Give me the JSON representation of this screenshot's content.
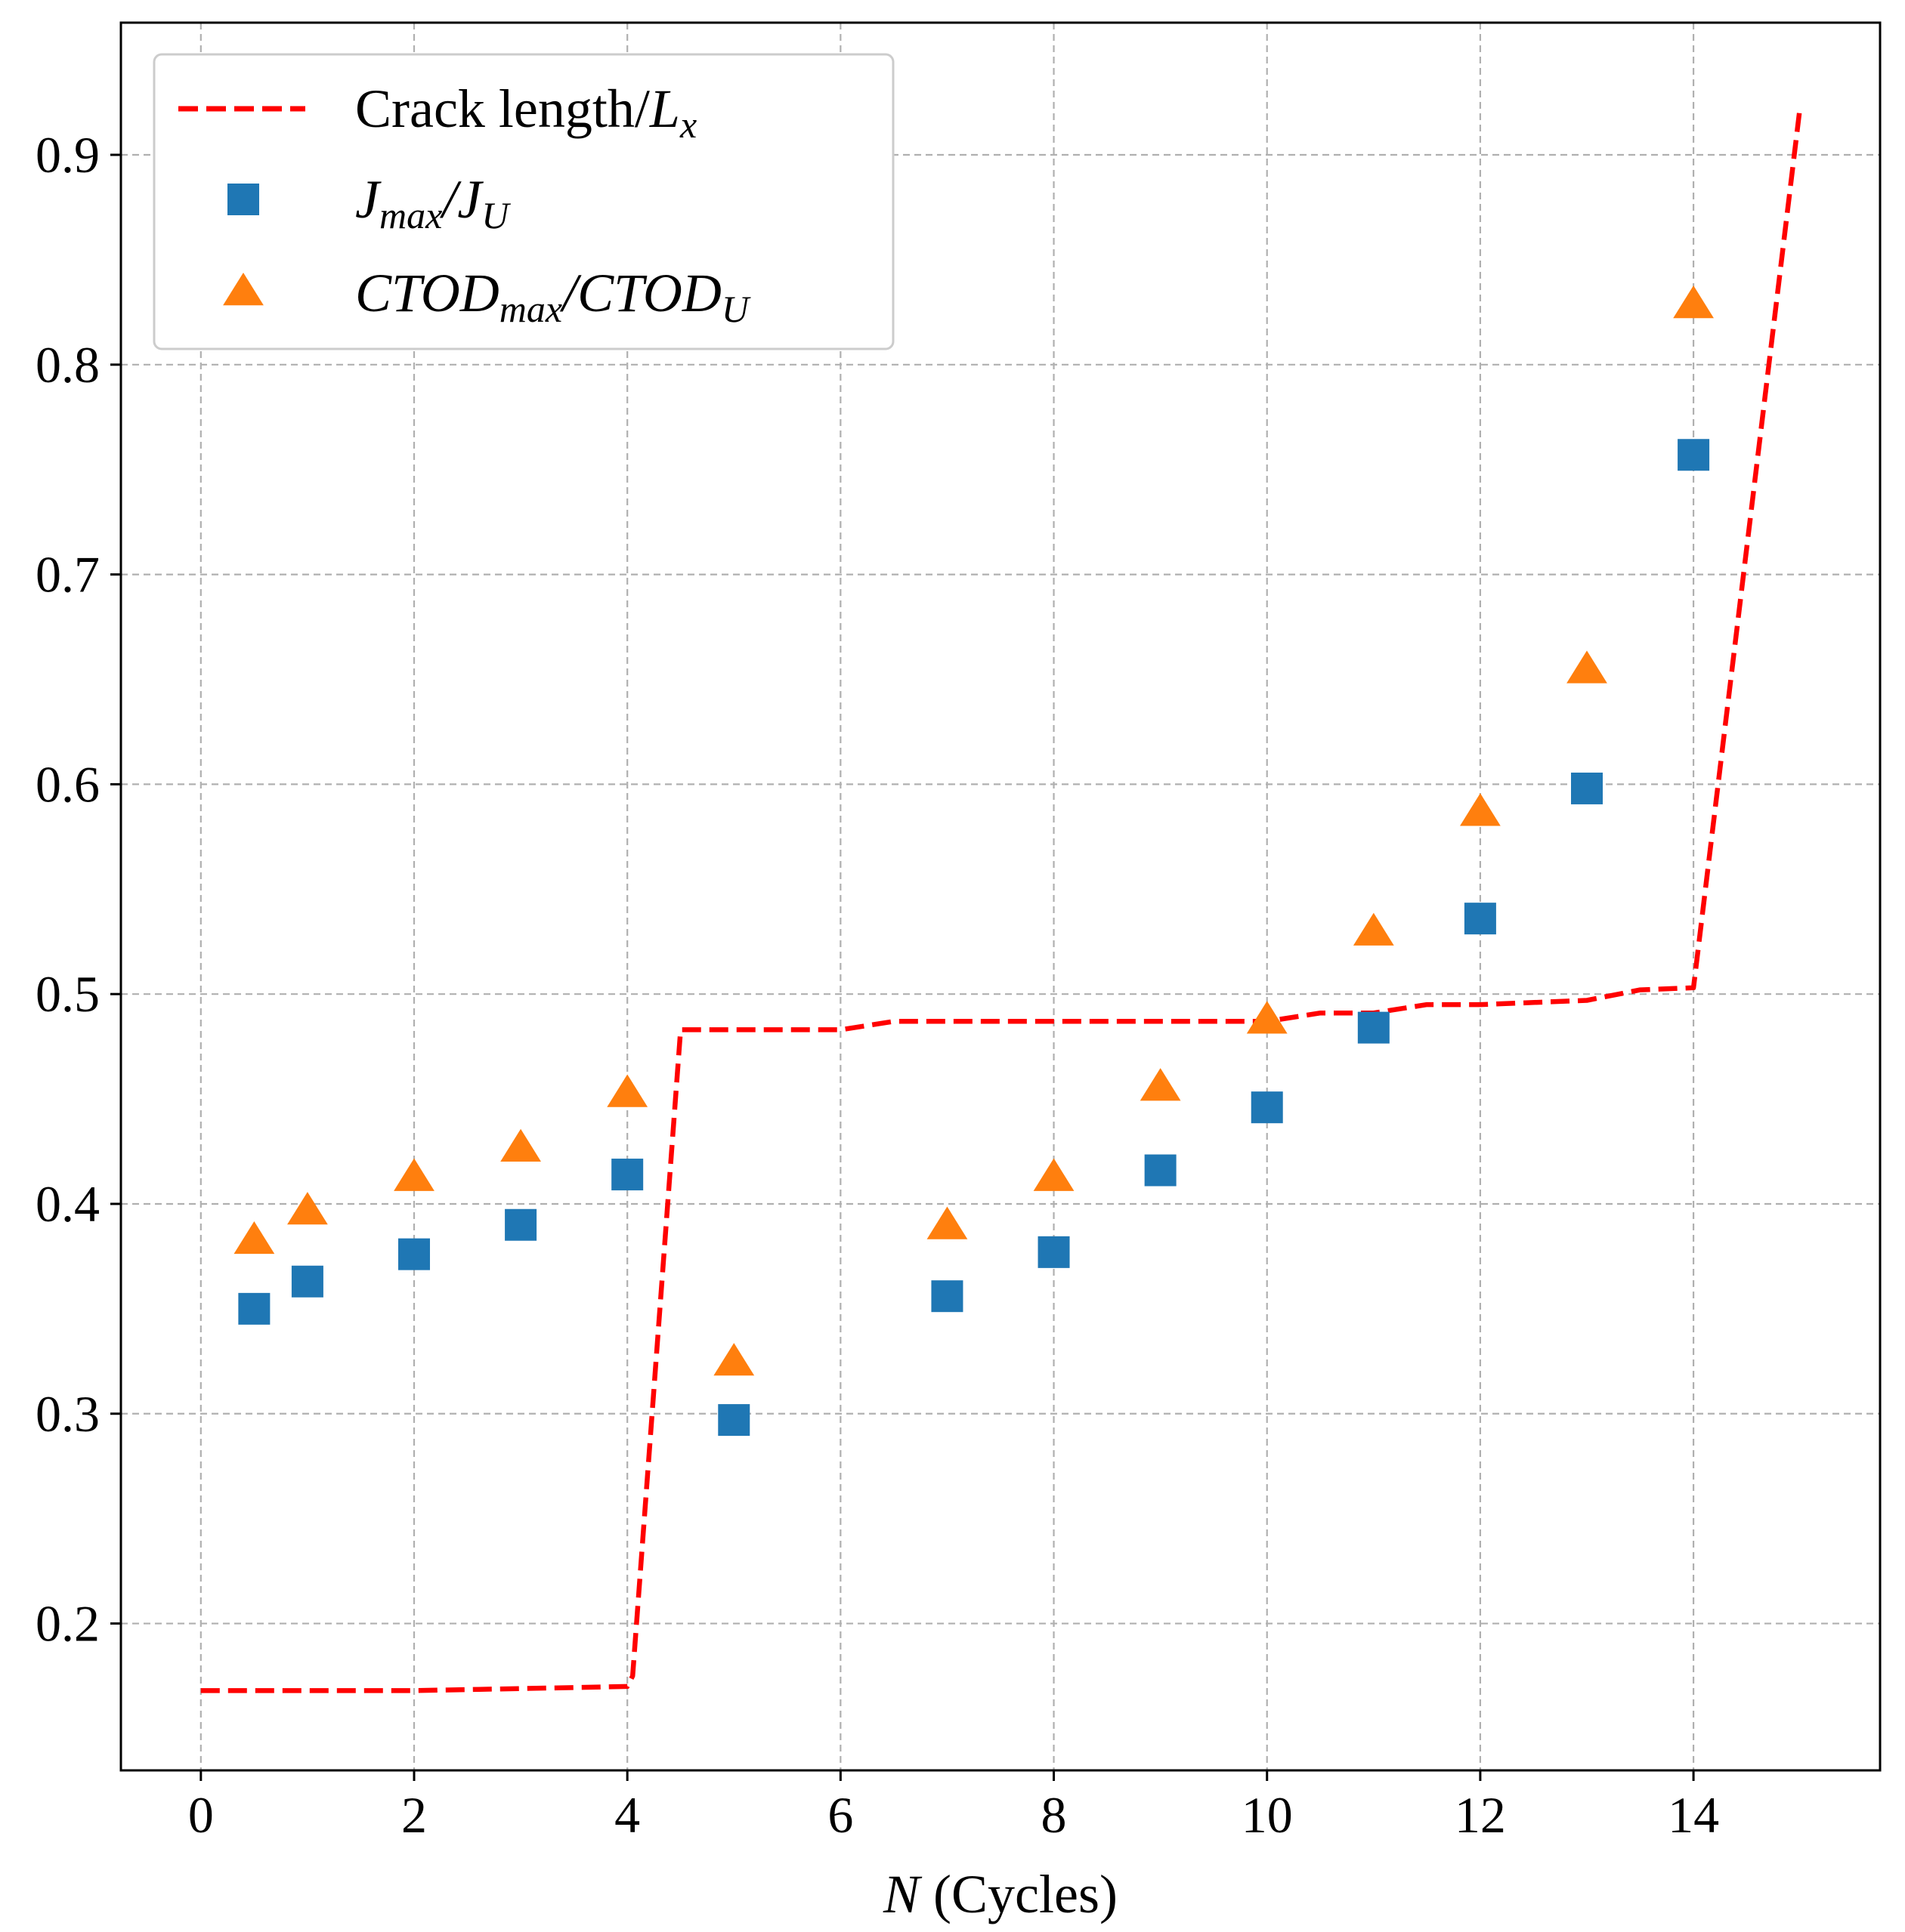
{
  "chart_data": {
    "type": "scatter",
    "title": "",
    "xlabel": {
      "var": "N",
      "text": " (Cycles)"
    },
    "ylabel": "",
    "xlim": [
      -0.75,
      15.75
    ],
    "ylim": [
      0.13,
      0.963
    ],
    "xticks": [
      0,
      2,
      4,
      6,
      8,
      10,
      12,
      14
    ],
    "xtick_labels": [
      "0",
      "2",
      "4",
      "6",
      "8",
      "10",
      "12",
      "14"
    ],
    "yticks": [
      0.2,
      0.3,
      0.4,
      0.5,
      0.6,
      0.7,
      0.8,
      0.9
    ],
    "ytick_labels": [
      "0.2",
      "0.3",
      "0.4",
      "0.5",
      "0.6",
      "0.7",
      "0.8",
      "0.9"
    ],
    "grid": true,
    "legend_position": "top-left",
    "series": [
      {
        "name": "Crack length/Lx",
        "legend": {
          "text": "Crack length/",
          "var": "L",
          "sub": "x"
        },
        "kind": "line",
        "style": "dashed",
        "color": "#ff0000",
        "x": [
          0,
          2,
          3,
          4,
          4.05,
          4.5,
          6,
          6.5,
          8,
          10,
          10.5,
          11,
          11.5,
          12,
          13,
          13.5,
          14,
          15
        ],
        "y": [
          0.168,
          0.168,
          0.169,
          0.17,
          0.175,
          0.483,
          0.483,
          0.487,
          0.487,
          0.487,
          0.491,
          0.491,
          0.495,
          0.495,
          0.497,
          0.502,
          0.503,
          0.923
        ]
      },
      {
        "name": "Jmax/JU",
        "legend": {
          "var": "J",
          "sub": "max",
          "sep": "/",
          "var2": "J",
          "sub2": "U"
        },
        "kind": "scatter",
        "marker": "square",
        "color": "#1f77b4",
        "x": [
          0.5,
          1,
          2,
          3,
          4,
          5,
          7,
          8,
          9,
          10,
          11,
          12,
          13,
          14
        ],
        "y": [
          0.35,
          0.363,
          0.376,
          0.39,
          0.414,
          0.297,
          0.356,
          0.377,
          0.416,
          0.446,
          0.484,
          0.536,
          0.598,
          0.757
        ]
      },
      {
        "name": "CTODmax/CTODU",
        "legend": {
          "var": "CTOD",
          "sub": "max",
          "sep": "/",
          "var2": "CTOD",
          "sub2": "U"
        },
        "kind": "scatter",
        "marker": "triangle",
        "color": "#ff7f0e",
        "x": [
          0.5,
          1,
          2,
          3,
          4,
          5,
          7,
          8,
          9,
          10,
          11,
          12,
          13,
          14
        ],
        "y": [
          0.382,
          0.396,
          0.412,
          0.426,
          0.452,
          0.324,
          0.389,
          0.412,
          0.455,
          0.487,
          0.529,
          0.586,
          0.654,
          0.828
        ]
      }
    ]
  }
}
